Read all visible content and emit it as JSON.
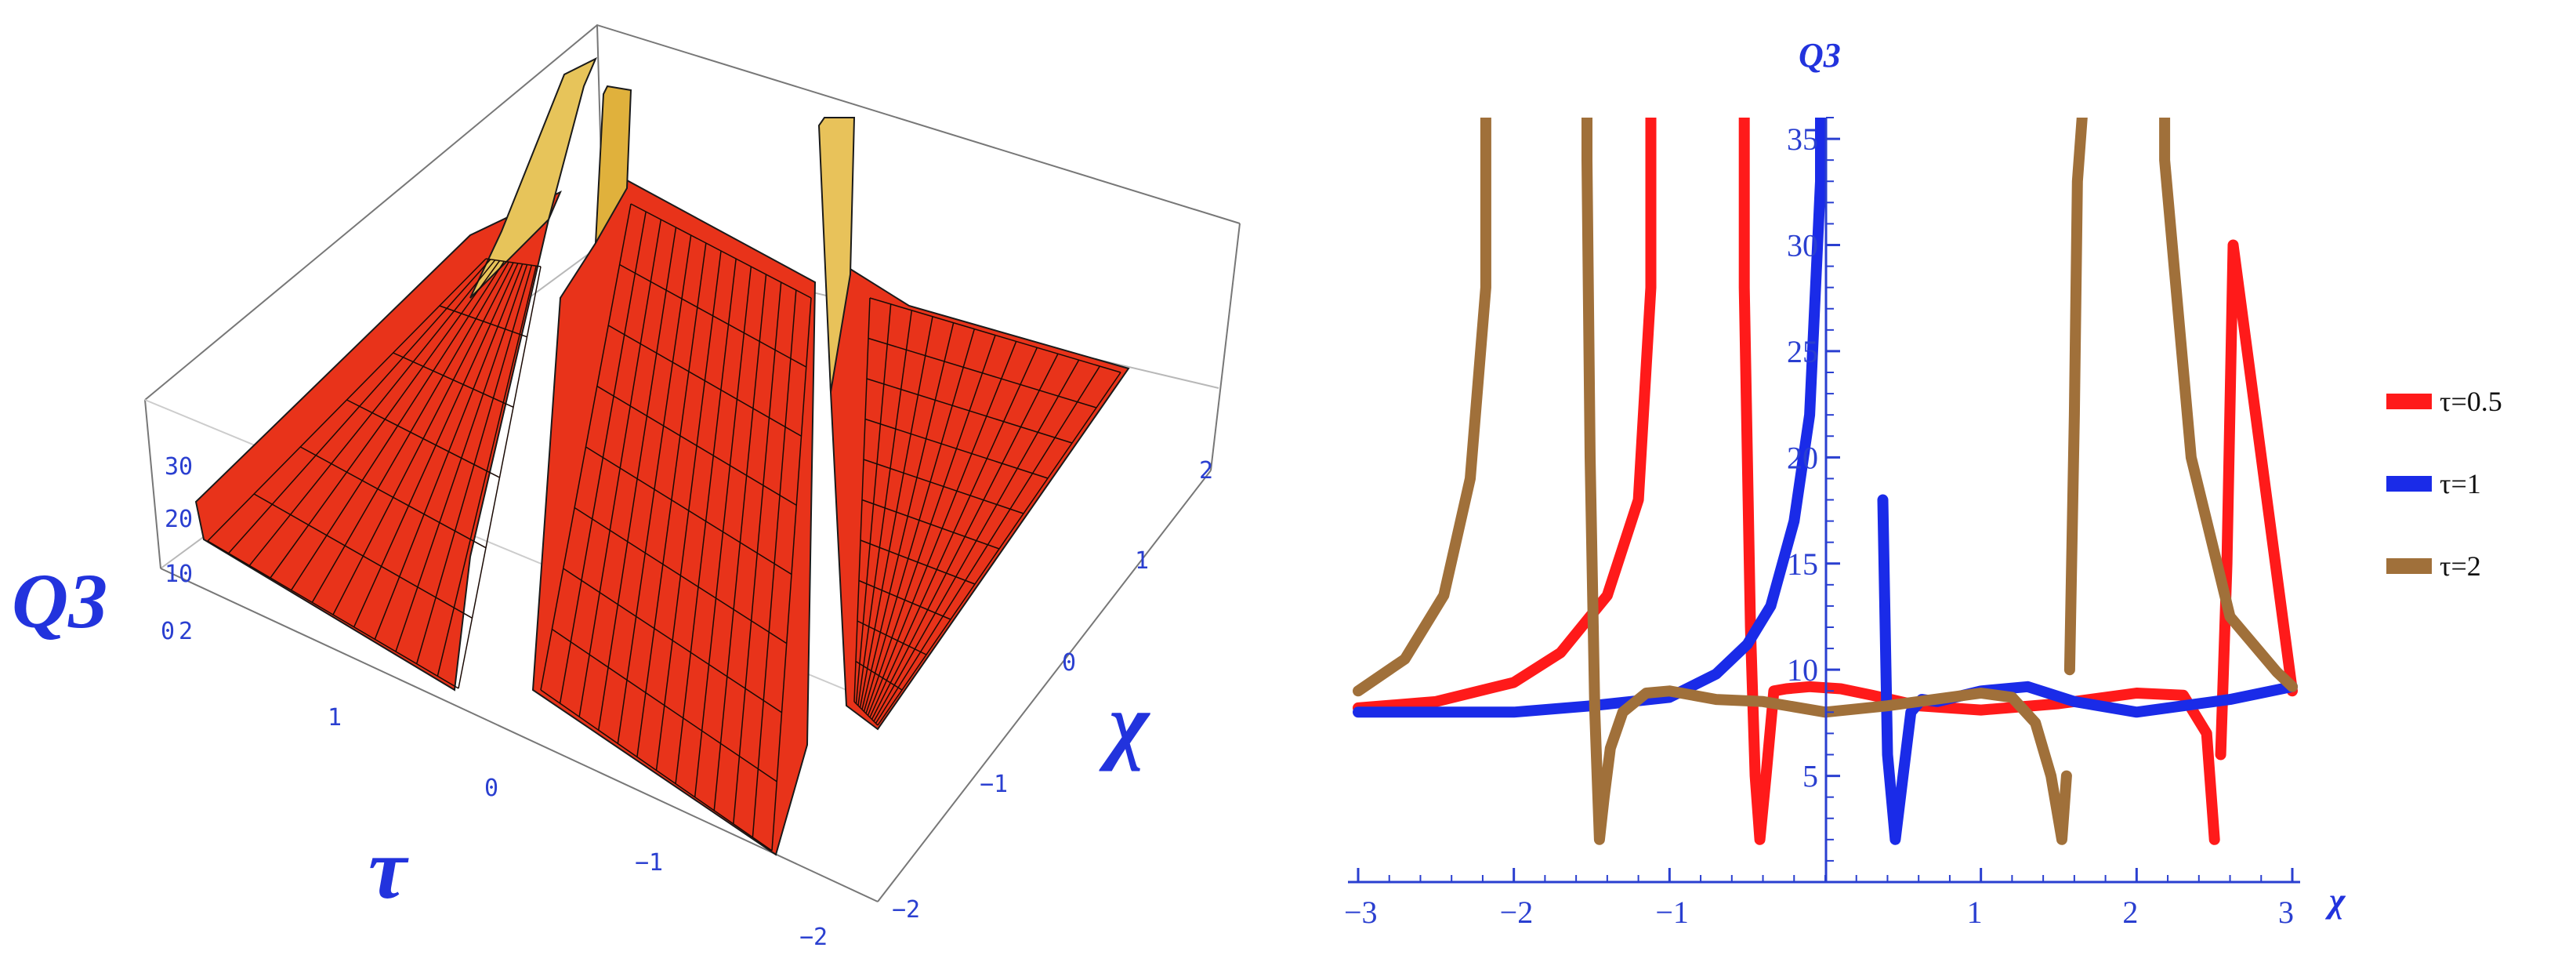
{
  "chart_data": [
    {
      "type": "surface",
      "zlabel": "Q3",
      "xlabel": "τ",
      "ylabel": "χ",
      "z_ticks": [
        "30",
        "20",
        "10",
        "0"
      ],
      "tau_ticks": [
        "2",
        "1",
        "0",
        "−1",
        "−2"
      ],
      "chi_ticks": [
        "2",
        "1",
        "0",
        "−1",
        "−2"
      ],
      "tau_range": [
        -2,
        2
      ],
      "chi_range": [
        -2,
        2
      ],
      "z_range": [
        0,
        35
      ],
      "surface_color": "#e8331a"
    },
    {
      "type": "line",
      "ylabel": "Q3",
      "xlabel": "χ",
      "xlim": [
        -3,
        3
      ],
      "ylim": [
        0,
        36
      ],
      "x_ticks": [
        "−3",
        "−2",
        "−1",
        "1",
        "2",
        "3"
      ],
      "y_ticks": [
        "5",
        "10",
        "15",
        "20",
        "25",
        "30",
        "35"
      ],
      "legend_position": "right",
      "grid": false,
      "series": [
        {
          "name": "τ=0.5",
          "color": "#ff1a1a",
          "poles": [
            -1.07,
            -0.53,
            2.53
          ],
          "x": [
            -3,
            -2.5,
            -2,
            -1.7,
            -1.4,
            -1.2,
            -1.12,
            -0.52,
            -0.48,
            -0.45,
            -0.42,
            -0.38,
            -0.33,
            -0.25,
            -0.1,
            0.1,
            0.3,
            0.6,
            1,
            1.5,
            2,
            2.3,
            2.45,
            2.5,
            2.54,
            2.58,
            2.62,
            3
          ],
          "y": [
            8.2,
            8.5,
            9.4,
            10.8,
            13.5,
            18,
            28,
            28,
            12,
            5,
            2,
            5,
            9,
            9.1,
            9.2,
            9.1,
            8.8,
            8.3,
            8.1,
            8.4,
            8.9,
            8.8,
            7,
            2,
            6,
            15,
            30,
            9
          ]
        },
        {
          "name": "τ=1",
          "color": "#1a2be8",
          "poles": [
            0,
            0.35
          ],
          "x": [
            -3,
            -2.5,
            -2,
            -1.5,
            -1,
            -0.7,
            -0.5,
            -0.35,
            -0.2,
            -0.1,
            -0.03,
            0.33,
            0.37,
            0.4,
            0.45,
            0.5,
            0.55,
            0.62,
            0.72,
            1,
            1.3,
            1.6,
            2,
            2.3,
            2.6,
            3
          ],
          "y": [
            8,
            8,
            8,
            8.3,
            8.7,
            9.8,
            11.2,
            13,
            17,
            22,
            33,
            36,
            18,
            6,
            2,
            5,
            8,
            8.6,
            8.5,
            9,
            9.2,
            8.5,
            8,
            8.3,
            8.6,
            9.2
          ]
        },
        {
          "name": "τ=2",
          "color": "#a0703a",
          "poles": [
            -2.1,
            -1.55,
            1.56,
            2.1
          ],
          "x": [
            -3,
            -2.7,
            -2.45,
            -2.28,
            -2.18,
            -1.53,
            -1.51,
            -1.48,
            -1.45,
            -1.42,
            -1.38,
            -1.3,
            -1.15,
            -1,
            -0.7,
            -0.4,
            0,
            0.4,
            0.7,
            1,
            1.2,
            1.35,
            1.45,
            1.52,
            1.55,
            1.57,
            1.6,
            1.62,
            1.65,
            2.18,
            2.35,
            2.6,
            2.9,
            3
          ],
          "y": [
            9,
            10.5,
            13.5,
            19,
            28,
            34,
            20,
            8,
            2,
            4,
            6.3,
            8,
            8.9,
            9,
            8.6,
            8.5,
            8,
            8.3,
            8.6,
            8.9,
            8.7,
            7.5,
            5,
            2,
            5,
            10,
            22,
            33,
            36,
            34,
            20,
            12.5,
            9.9,
            9.2
          ]
        }
      ]
    }
  ]
}
